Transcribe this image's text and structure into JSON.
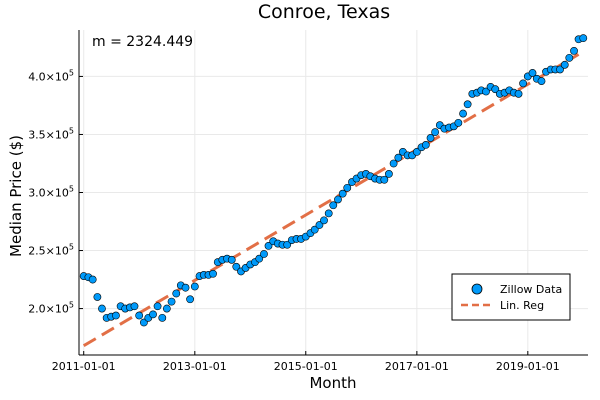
{
  "chart_data": {
    "type": "scatter",
    "title": "Conroe, Texas",
    "xlabel": "Month",
    "ylabel": "Median Price ($)",
    "annotation": "m = 2324.449",
    "xlim": [
      "2010-12-01",
      "2020-02-01"
    ],
    "ylim": [
      160000,
      440000
    ],
    "x_ticks": [
      "2011-01-01",
      "2013-01-01",
      "2015-01-01",
      "2017-01-01",
      "2019-01-01"
    ],
    "y_ticks": [
      {
        "value": 200000,
        "mantissa": "2.0×10",
        "exp": "5"
      },
      {
        "value": 250000,
        "mantissa": "2.5×10",
        "exp": "5"
      },
      {
        "value": 300000,
        "mantissa": "3.0×10",
        "exp": "5"
      },
      {
        "value": 350000,
        "mantissa": "3.5×10",
        "exp": "5"
      },
      {
        "value": 400000,
        "mantissa": "4.0×10",
        "exp": "5"
      }
    ],
    "grid": true,
    "legend_position": "bottom-right",
    "series": [
      {
        "name": "Zillow Data",
        "kind": "scatter",
        "color": "#009AFA",
        "start": "2011-01",
        "values": [
          228000,
          227000,
          225000,
          210000,
          200000,
          192000,
          193000,
          194000,
          202000,
          200000,
          201000,
          202000,
          194000,
          188000,
          192000,
          195000,
          202000,
          192000,
          200000,
          206000,
          213000,
          220000,
          218000,
          208000,
          219000,
          228000,
          229000,
          229000,
          230000,
          240000,
          242000,
          243000,
          242000,
          236000,
          232000,
          235000,
          238000,
          240000,
          243000,
          247000,
          254000,
          258000,
          256000,
          255000,
          255000,
          259000,
          260000,
          260000,
          262000,
          265000,
          268000,
          272000,
          276000,
          282000,
          289000,
          294000,
          299000,
          304000,
          309000,
          312000,
          315000,
          316000,
          314000,
          312000,
          311000,
          311000,
          316000,
          325000,
          330000,
          335000,
          332000,
          332000,
          335000,
          339000,
          341000,
          347000,
          352000,
          358000,
          355000,
          356000,
          357000,
          360000,
          368000,
          376000,
          385000,
          386000,
          388000,
          387000,
          391000,
          389000,
          385000,
          386000,
          388000,
          386000,
          385000,
          394000,
          400000,
          403000,
          398000,
          396000,
          404000,
          406000,
          406000,
          406000,
          410000,
          416000,
          422000,
          432000,
          433000
        ]
      },
      {
        "name": "Lin. Reg",
        "kind": "line",
        "color": "#E26F46",
        "x": [
          "2011-01-01",
          "2019-12-01"
        ],
        "y": [
          168000,
          419000
        ]
      }
    ]
  }
}
